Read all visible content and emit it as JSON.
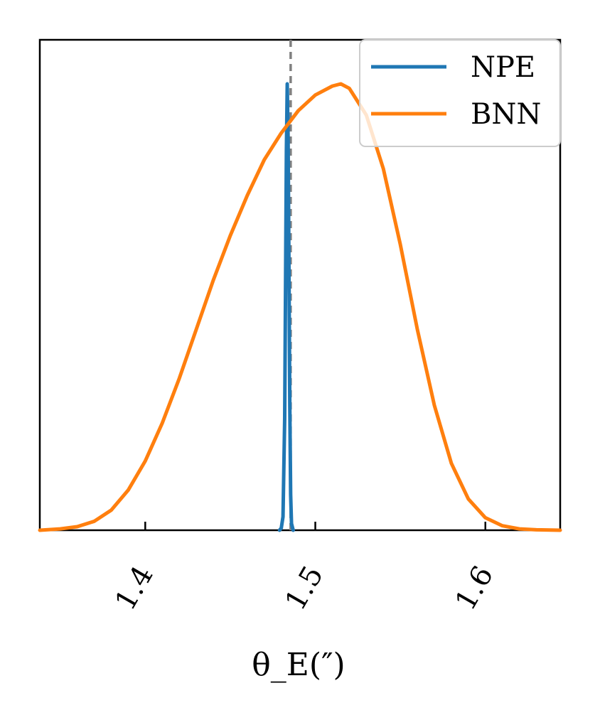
{
  "chart_data": {
    "type": "line",
    "title": "",
    "xlabel": "θ_E(″)",
    "ylabel": "",
    "xlim": [
      1.338,
      1.644
    ],
    "ylim": [
      0,
      1.0
    ],
    "xticks": [
      1.4,
      1.5,
      1.6
    ],
    "xtick_labels": [
      "1.4",
      "1.5",
      "1.6"
    ],
    "grid": false,
    "legend_position": "top-right",
    "truth_value": 1.4855,
    "series": [
      {
        "name": "NPE",
        "color": "#1f77b4",
        "x": [
          1.479,
          1.48,
          1.481,
          1.482,
          1.4825,
          1.483,
          1.4835,
          1.484,
          1.4845,
          1.485,
          1.4855,
          1.486,
          1.487
        ],
        "y": [
          0.0,
          0.005,
          0.03,
          0.25,
          0.55,
          0.85,
          1.0,
          0.88,
          0.6,
          0.28,
          0.08,
          0.015,
          0.0
        ]
      },
      {
        "name": "BNN",
        "color": "#ff7f0e",
        "x": [
          1.338,
          1.35,
          1.36,
          1.37,
          1.38,
          1.39,
          1.4,
          1.41,
          1.42,
          1.43,
          1.44,
          1.45,
          1.46,
          1.47,
          1.48,
          1.49,
          1.5,
          1.51,
          1.515,
          1.52,
          1.53,
          1.54,
          1.55,
          1.56,
          1.57,
          1.58,
          1.59,
          1.6,
          1.61,
          1.62,
          1.63,
          1.644
        ],
        "y": [
          0.0,
          0.003,
          0.008,
          0.02,
          0.045,
          0.09,
          0.155,
          0.24,
          0.34,
          0.45,
          0.56,
          0.66,
          0.75,
          0.83,
          0.89,
          0.94,
          0.975,
          0.995,
          1.0,
          0.99,
          0.93,
          0.81,
          0.64,
          0.45,
          0.28,
          0.15,
          0.07,
          0.028,
          0.01,
          0.003,
          0.001,
          0.0
        ]
      }
    ]
  }
}
